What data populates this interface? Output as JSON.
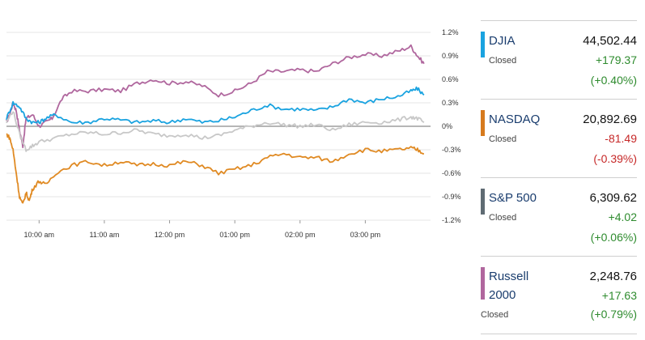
{
  "chart_data": {
    "type": "line",
    "title": "",
    "xlabel": "",
    "ylabel": "",
    "x_ticks": [
      "10:00 am",
      "11:00 am",
      "12:00 pm",
      "01:00 pm",
      "02:00 pm",
      "03:00 pm"
    ],
    "y_ticks": [
      "1.2%",
      "0.9%",
      "0.6%",
      "0.3%",
      "0%",
      "-0.3%",
      "-0.6%",
      "-0.9%",
      "-1.2%"
    ],
    "ylim": [
      -1.2,
      1.2
    ],
    "xlim_hours": [
      9.5,
      16.0
    ],
    "grid": true,
    "series": [
      {
        "key": "russell",
        "color": "#b0679e",
        "points": [
          [
            9.5,
            0.05
          ],
          [
            9.55,
            0.15
          ],
          [
            9.6,
            0.3
          ],
          [
            9.65,
            0.2
          ],
          [
            9.7,
            -0.05
          ],
          [
            9.75,
            -0.25
          ],
          [
            9.8,
            0.1
          ],
          [
            9.9,
            0.15
          ],
          [
            10.0,
            0.0
          ],
          [
            10.1,
            0.05
          ],
          [
            10.2,
            0.1
          ],
          [
            10.35,
            0.35
          ],
          [
            10.5,
            0.45
          ],
          [
            10.75,
            0.45
          ],
          [
            11.0,
            0.47
          ],
          [
            11.25,
            0.45
          ],
          [
            11.5,
            0.55
          ],
          [
            11.75,
            0.6
          ],
          [
            12.0,
            0.55
          ],
          [
            12.25,
            0.57
          ],
          [
            12.5,
            0.52
          ],
          [
            12.75,
            0.4
          ],
          [
            13.0,
            0.45
          ],
          [
            13.25,
            0.55
          ],
          [
            13.5,
            0.7
          ],
          [
            13.75,
            0.7
          ],
          [
            14.0,
            0.72
          ],
          [
            14.25,
            0.7
          ],
          [
            14.5,
            0.8
          ],
          [
            14.75,
            0.88
          ],
          [
            15.0,
            0.92
          ],
          [
            15.25,
            0.9
          ],
          [
            15.5,
            0.96
          ],
          [
            15.7,
            1.02
          ],
          [
            15.8,
            0.9
          ],
          [
            15.9,
            0.8
          ]
        ]
      },
      {
        "key": "djia",
        "color": "#1aa3e0",
        "points": [
          [
            9.5,
            0.1
          ],
          [
            9.6,
            0.3
          ],
          [
            9.7,
            0.25
          ],
          [
            9.8,
            0.1
          ],
          [
            9.9,
            0.05
          ],
          [
            10.0,
            0.05
          ],
          [
            10.1,
            0.1
          ],
          [
            10.25,
            0.15
          ],
          [
            10.5,
            0.05
          ],
          [
            10.75,
            0.05
          ],
          [
            11.0,
            0.1
          ],
          [
            11.25,
            0.08
          ],
          [
            11.5,
            0.05
          ],
          [
            11.75,
            0.07
          ],
          [
            12.0,
            0.05
          ],
          [
            12.25,
            0.1
          ],
          [
            12.5,
            0.05
          ],
          [
            12.75,
            0.07
          ],
          [
            13.0,
            0.12
          ],
          [
            13.25,
            0.2
          ],
          [
            13.5,
            0.27
          ],
          [
            13.75,
            0.22
          ],
          [
            14.0,
            0.22
          ],
          [
            14.25,
            0.2
          ],
          [
            14.5,
            0.25
          ],
          [
            14.75,
            0.35
          ],
          [
            15.0,
            0.3
          ],
          [
            15.25,
            0.35
          ],
          [
            15.5,
            0.38
          ],
          [
            15.7,
            0.45
          ],
          [
            15.8,
            0.48
          ],
          [
            15.9,
            0.4
          ]
        ]
      },
      {
        "key": "sp500",
        "color": "#c8c8c8",
        "points": [
          [
            9.5,
            0.05
          ],
          [
            9.6,
            0.2
          ],
          [
            9.7,
            -0.1
          ],
          [
            9.8,
            -0.3
          ],
          [
            9.9,
            -0.25
          ],
          [
            10.0,
            -0.2
          ],
          [
            10.25,
            -0.15
          ],
          [
            10.5,
            -0.1
          ],
          [
            10.75,
            -0.08
          ],
          [
            11.0,
            -0.1
          ],
          [
            11.25,
            -0.08
          ],
          [
            11.5,
            -0.05
          ],
          [
            11.75,
            -0.1
          ],
          [
            12.0,
            -0.12
          ],
          [
            12.25,
            -0.1
          ],
          [
            12.5,
            -0.15
          ],
          [
            12.75,
            -0.12
          ],
          [
            13.0,
            -0.05
          ],
          [
            13.25,
            0.0
          ],
          [
            13.5,
            0.05
          ],
          [
            13.75,
            0.02
          ],
          [
            14.0,
            0.0
          ],
          [
            14.25,
            0.02
          ],
          [
            14.5,
            -0.05
          ],
          [
            14.75,
            0.02
          ],
          [
            15.0,
            0.05
          ],
          [
            15.25,
            0.05
          ],
          [
            15.5,
            0.08
          ],
          [
            15.7,
            0.12
          ],
          [
            15.8,
            0.1
          ],
          [
            15.9,
            0.05
          ]
        ]
      },
      {
        "key": "nasdaq",
        "color": "#e08a23",
        "points": [
          [
            9.5,
            -0.1
          ],
          [
            9.55,
            -0.15
          ],
          [
            9.6,
            -0.3
          ],
          [
            9.65,
            -0.6
          ],
          [
            9.7,
            -0.9
          ],
          [
            9.75,
            -1.0
          ],
          [
            9.8,
            -0.85
          ],
          [
            9.85,
            -0.95
          ],
          [
            9.9,
            -0.8
          ],
          [
            10.0,
            -0.7
          ],
          [
            10.1,
            -0.75
          ],
          [
            10.25,
            -0.6
          ],
          [
            10.5,
            -0.5
          ],
          [
            10.75,
            -0.45
          ],
          [
            11.0,
            -0.5
          ],
          [
            11.25,
            -0.45
          ],
          [
            11.5,
            -0.5
          ],
          [
            11.75,
            -0.48
          ],
          [
            12.0,
            -0.5
          ],
          [
            12.25,
            -0.45
          ],
          [
            12.5,
            -0.5
          ],
          [
            12.75,
            -0.6
          ],
          [
            13.0,
            -0.55
          ],
          [
            13.25,
            -0.5
          ],
          [
            13.5,
            -0.4
          ],
          [
            13.75,
            -0.35
          ],
          [
            14.0,
            -0.4
          ],
          [
            14.25,
            -0.4
          ],
          [
            14.5,
            -0.45
          ],
          [
            14.75,
            -0.35
          ],
          [
            15.0,
            -0.3
          ],
          [
            15.25,
            -0.32
          ],
          [
            15.5,
            -0.3
          ],
          [
            15.7,
            -0.28
          ],
          [
            15.8,
            -0.3
          ],
          [
            15.9,
            -0.35
          ]
        ]
      }
    ]
  },
  "indices": [
    {
      "key": "djia",
      "name": "DJIA",
      "name2": "",
      "price": "44,502.44",
      "status": "Closed",
      "change": "+179.37",
      "pct": "(+0.40%)",
      "bar_color": "#1aa3e0",
      "change_color": "#2e8b2e"
    },
    {
      "key": "nasdaq",
      "name": "NASDAQ",
      "name2": "",
      "price": "20,892.69",
      "status": "Closed",
      "change": "-81.49",
      "pct": "(-0.39%)",
      "bar_color": "#d67a1e",
      "change_color": "#c62828"
    },
    {
      "key": "sp500",
      "name": "S&P 500",
      "name2": "",
      "price": "6,309.62",
      "status": "Closed",
      "change": "+4.02",
      "pct": "(+0.06%)",
      "bar_color": "#5f6b73",
      "change_color": "#2e8b2e"
    },
    {
      "key": "russell",
      "name": "Russell",
      "name2": "2000",
      "price": "2,248.76",
      "status": "Closed",
      "change": "+17.63",
      "pct": "(+0.79%)",
      "bar_color": "#b0679e",
      "change_color": "#2e8b2e"
    }
  ]
}
